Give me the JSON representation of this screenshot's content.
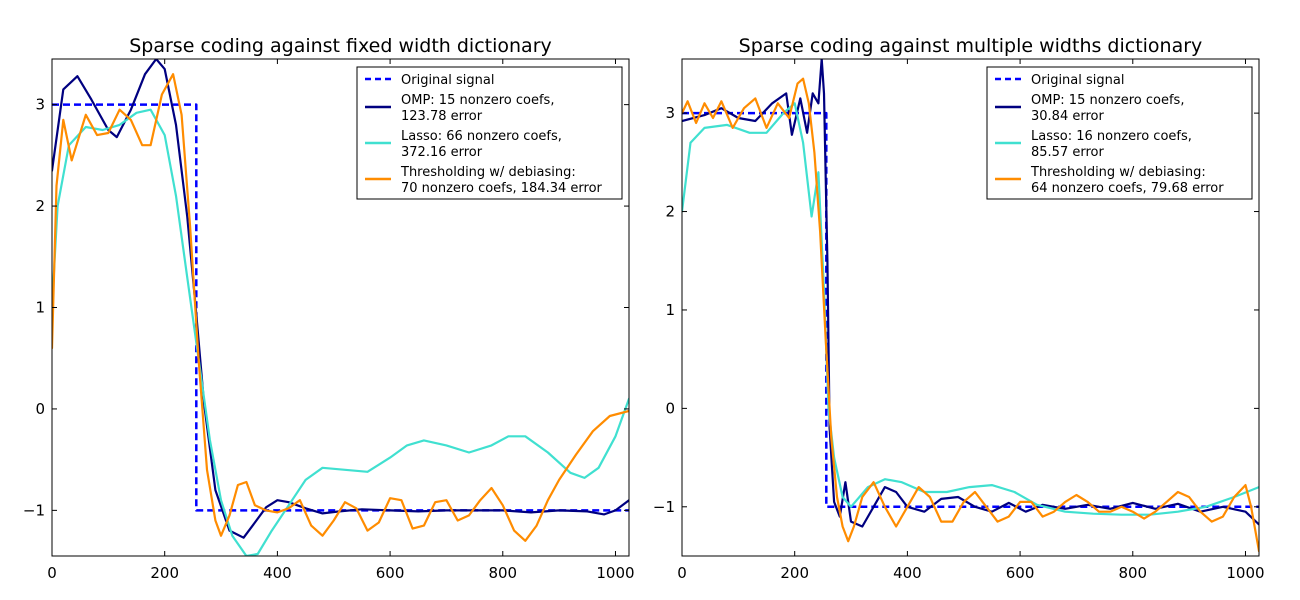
{
  "chart_data": [
    {
      "type": "line",
      "title": "Sparse coding against fixed width dictionary",
      "xlabel": "",
      "ylabel": "",
      "xlim": [
        0,
        1024
      ],
      "ylim": [
        -1.45,
        3.45
      ],
      "xticks": [
        0,
        200,
        400,
        600,
        800,
        1000
      ],
      "yticks": [
        -1,
        0,
        1,
        2,
        3
      ],
      "xtick_labels": [
        "0",
        "200",
        "400",
        "600",
        "800",
        "1000"
      ],
      "ytick_labels": [
        "−1",
        "0",
        "1",
        "2",
        "3"
      ],
      "grid": false,
      "legend_position": "top-right",
      "series": [
        {
          "name": "Original signal",
          "legend_lines": [
            "Original signal"
          ],
          "color": "#0000ff",
          "dashed": true,
          "step": true,
          "x": [
            0,
            256,
            256,
            1024
          ],
          "y": [
            3,
            3,
            -1,
            -1
          ]
        },
        {
          "name": "OMP: 15 nonzero coefs, 123.78 error",
          "legend_lines": [
            "OMP: 15 nonzero coefs,",
            "123.78 error"
          ],
          "color": "#000080",
          "x": [
            0,
            20,
            45,
            70,
            100,
            115,
            140,
            165,
            185,
            200,
            220,
            240,
            255,
            270,
            290,
            315,
            340,
            360,
            380,
            400,
            420,
            450,
            480,
            510,
            550,
            600,
            650,
            700,
            750,
            800,
            850,
            900,
            950,
            980,
            1000,
            1024
          ],
          "y": [
            2.35,
            3.15,
            3.28,
            3.05,
            2.75,
            2.68,
            2.95,
            3.3,
            3.45,
            3.35,
            2.8,
            1.9,
            1.0,
            0.05,
            -0.8,
            -1.2,
            -1.27,
            -1.12,
            -0.97,
            -0.9,
            -0.92,
            -0.98,
            -1.03,
            -1.01,
            -0.99,
            -1.0,
            -1.01,
            -1.0,
            -1.0,
            -1.0,
            -1.02,
            -1.0,
            -1.01,
            -1.04,
            -1.0,
            -0.9
          ]
        },
        {
          "name": "Lasso: 66 nonzero coefs, 372.16 error",
          "legend_lines": [
            "Lasso: 66 nonzero coefs,",
            "372.16 error"
          ],
          "color": "#40e0d0",
          "x": [
            0,
            10,
            30,
            60,
            90,
            120,
            150,
            175,
            200,
            220,
            240,
            260,
            280,
            300,
            320,
            345,
            365,
            390,
            420,
            450,
            480,
            520,
            560,
            600,
            630,
            660,
            700,
            740,
            780,
            810,
            840,
            880,
            920,
            945,
            970,
            1000,
            1024
          ],
          "y": [
            1.0,
            2.0,
            2.6,
            2.78,
            2.75,
            2.8,
            2.92,
            2.95,
            2.7,
            2.1,
            1.3,
            0.5,
            -0.3,
            -0.9,
            -1.25,
            -1.45,
            -1.43,
            -1.2,
            -0.95,
            -0.7,
            -0.58,
            -0.6,
            -0.62,
            -0.48,
            -0.36,
            -0.31,
            -0.36,
            -0.43,
            -0.36,
            -0.27,
            -0.27,
            -0.43,
            -0.63,
            -0.68,
            -0.58,
            -0.27,
            0.1
          ]
        },
        {
          "name": "Thresholding w/ debiasing: 70 nonzero coefs, 184.34 error",
          "legend_lines": [
            "Thresholding w/ debiasing:",
            "70 nonzero coefs, 184.34 error"
          ],
          "color": "#ff8c00",
          "x": [
            0,
            8,
            20,
            35,
            60,
            80,
            100,
            120,
            140,
            160,
            175,
            195,
            215,
            230,
            245,
            260,
            275,
            290,
            300,
            315,
            330,
            345,
            360,
            380,
            400,
            420,
            440,
            460,
            480,
            500,
            520,
            540,
            560,
            580,
            600,
            620,
            640,
            660,
            680,
            700,
            720,
            740,
            760,
            780,
            800,
            820,
            840,
            860,
            880,
            900,
            930,
            960,
            990,
            1024
          ],
          "y": [
            0.6,
            2.2,
            2.85,
            2.45,
            2.9,
            2.7,
            2.72,
            2.95,
            2.85,
            2.6,
            2.6,
            3.1,
            3.3,
            2.9,
            1.8,
            0.5,
            -0.6,
            -1.1,
            -1.25,
            -1.05,
            -0.75,
            -0.72,
            -0.95,
            -1.0,
            -1.02,
            -0.98,
            -0.9,
            -1.15,
            -1.25,
            -1.1,
            -0.92,
            -0.98,
            -1.2,
            -1.12,
            -0.88,
            -0.9,
            -1.18,
            -1.15,
            -0.92,
            -0.9,
            -1.1,
            -1.05,
            -0.9,
            -0.78,
            -0.95,
            -1.2,
            -1.3,
            -1.15,
            -0.9,
            -0.7,
            -0.45,
            -0.22,
            -0.07,
            -0.02
          ]
        }
      ]
    },
    {
      "type": "line",
      "title": "Sparse coding against multiple widths dictionary",
      "xlabel": "",
      "ylabel": "",
      "xlim": [
        0,
        1024
      ],
      "ylim": [
        -1.5,
        3.55
      ],
      "xticks": [
        0,
        200,
        400,
        600,
        800,
        1000
      ],
      "yticks": [
        -1,
        0,
        1,
        2,
        3
      ],
      "xtick_labels": [
        "0",
        "200",
        "400",
        "600",
        "800",
        "1000"
      ],
      "ytick_labels": [
        "−1",
        "0",
        "1",
        "2",
        "3"
      ],
      "grid": false,
      "legend_position": "top-right",
      "series": [
        {
          "name": "Original signal",
          "legend_lines": [
            "Original signal"
          ],
          "color": "#0000ff",
          "dashed": true,
          "step": true,
          "x": [
            0,
            256,
            256,
            1024
          ],
          "y": [
            3,
            3,
            -1,
            -1
          ]
        },
        {
          "name": "OMP: 15 nonzero coefs, 30.84 error",
          "legend_lines": [
            "OMP: 15 nonzero coefs,",
            "30.84 error"
          ],
          "color": "#000080",
          "x": [
            0,
            40,
            70,
            100,
            130,
            160,
            185,
            195,
            210,
            222,
            232,
            242,
            248,
            252,
            258,
            262,
            270,
            280,
            290,
            300,
            320,
            340,
            360,
            380,
            400,
            430,
            460,
            490,
            520,
            550,
            580,
            610,
            640,
            680,
            720,
            760,
            800,
            840,
            880,
            920,
            960,
            1000,
            1024
          ],
          "y": [
            2.92,
            2.98,
            3.05,
            2.95,
            2.92,
            3.1,
            3.2,
            2.78,
            3.15,
            2.8,
            3.2,
            3.1,
            3.55,
            3.2,
            1.5,
            -0.2,
            -0.95,
            -1.1,
            -0.75,
            -1.15,
            -1.2,
            -1.0,
            -0.8,
            -0.85,
            -1.0,
            -1.05,
            -0.92,
            -0.9,
            -1.0,
            -1.05,
            -0.96,
            -1.05,
            -0.98,
            -1.02,
            -0.98,
            -1.02,
            -0.96,
            -1.02,
            -0.97,
            -1.05,
            -1.0,
            -1.05,
            -1.18
          ]
        },
        {
          "name": "Lasso: 16 nonzero coefs, 85.57 error",
          "legend_lines": [
            "Lasso: 16 nonzero coefs,",
            "85.57 error"
          ],
          "color": "#40e0d0",
          "x": [
            0,
            15,
            40,
            80,
            120,
            150,
            180,
            200,
            215,
            230,
            242,
            252,
            260,
            270,
            285,
            300,
            330,
            360,
            390,
            430,
            470,
            510,
            550,
            590,
            630,
            680,
            730,
            780,
            830,
            880,
            930,
            980,
            1024
          ],
          "y": [
            2.0,
            2.7,
            2.85,
            2.88,
            2.8,
            2.8,
            3.0,
            3.1,
            2.7,
            1.95,
            2.4,
            1.2,
            0.0,
            -0.5,
            -0.9,
            -1.0,
            -0.8,
            -0.72,
            -0.75,
            -0.85,
            -0.85,
            -0.8,
            -0.78,
            -0.85,
            -0.98,
            -1.05,
            -1.07,
            -1.08,
            -1.08,
            -1.05,
            -1.0,
            -0.9,
            -0.8
          ]
        },
        {
          "name": "Thresholding w/ debiasing: 64 nonzero coefs, 79.68 error",
          "legend_lines": [
            "Thresholding w/ debiasing:",
            "64 nonzero coefs, 79.68 error"
          ],
          "color": "#ff8c00",
          "x": [
            0,
            10,
            25,
            40,
            55,
            70,
            90,
            110,
            130,
            150,
            170,
            190,
            205,
            215,
            225,
            235,
            245,
            255,
            265,
            275,
            285,
            295,
            305,
            320,
            340,
            360,
            380,
            400,
            420,
            440,
            460,
            480,
            500,
            520,
            540,
            560,
            580,
            600,
            620,
            640,
            660,
            680,
            700,
            720,
            740,
            760,
            780,
            800,
            820,
            840,
            860,
            880,
            900,
            920,
            940,
            960,
            980,
            1000,
            1010,
            1024
          ],
          "y": [
            3.0,
            3.12,
            2.9,
            3.1,
            2.95,
            3.12,
            2.85,
            3.05,
            3.15,
            2.85,
            3.1,
            2.95,
            3.3,
            3.35,
            3.1,
            2.6,
            1.8,
            0.7,
            -0.3,
            -0.9,
            -1.2,
            -1.35,
            -1.2,
            -0.9,
            -0.75,
            -1.0,
            -1.2,
            -1.0,
            -0.8,
            -0.9,
            -1.15,
            -1.15,
            -0.95,
            -0.85,
            -1.0,
            -1.15,
            -1.1,
            -0.95,
            -0.95,
            -1.1,
            -1.05,
            -0.95,
            -0.88,
            -0.95,
            -1.05,
            -1.05,
            -1.0,
            -1.05,
            -1.12,
            -1.05,
            -0.95,
            -0.85,
            -0.9,
            -1.05,
            -1.15,
            -1.1,
            -0.9,
            -0.78,
            -1.0,
            -1.45
          ]
        }
      ]
    }
  ]
}
